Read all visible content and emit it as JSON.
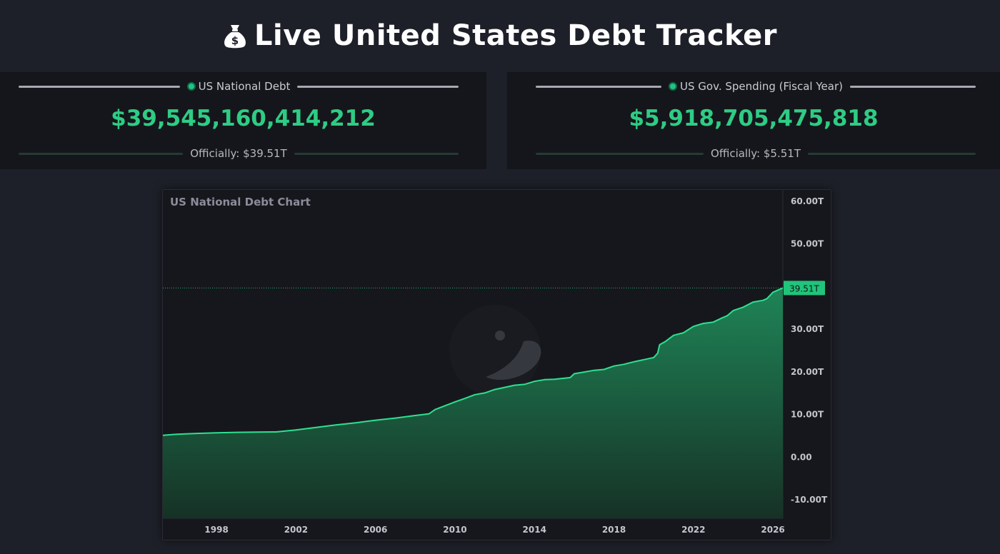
{
  "header": {
    "title": "Live United States Debt Tracker",
    "icon": "money-bag-icon"
  },
  "cards": [
    {
      "label": "US National Debt",
      "value": "$39,545,160,414,212",
      "official": "Officially: $39.51T"
    },
    {
      "label": "US Gov. Spending (Fiscal Year)",
      "value": "$5,918,705,475,818",
      "official": "Officially: $5.51T"
    }
  ],
  "colors": {
    "accent": "#2ecc84",
    "background": "#1e2029",
    "card": "#15161b"
  },
  "chart_data": {
    "type": "area",
    "title": "US National Debt Chart",
    "xlabel": "",
    "ylabel": "",
    "x_ticks": [
      "1998",
      "2002",
      "2006",
      "2010",
      "2014",
      "2018",
      "2022",
      "2026"
    ],
    "y_ticks": [
      "60.00T",
      "50.00T",
      "40.00T",
      "30.00T",
      "20.00T",
      "10.00T",
      "0.00",
      "-10.00T"
    ],
    "y_tick_values": [
      60,
      50,
      40,
      30,
      20,
      10,
      0,
      -10
    ],
    "ylim": [
      -14.5,
      62.5
    ],
    "xlim": [
      1995.3,
      2026.5
    ],
    "current_label": "39.51T",
    "current_value": 39.51,
    "series": [
      {
        "x": [
          1995.3,
          1996,
          1997,
          1998,
          1999,
          2000,
          2001,
          2002,
          2003,
          2004,
          2005,
          2006,
          2007,
          2008,
          2008.7,
          2009,
          2009.5,
          2010,
          2010.5,
          2011,
          2011.5,
          2012,
          2012.5,
          2013,
          2013.5,
          2014,
          2014.5,
          2015,
          2015.8,
          2016,
          2016.5,
          2017,
          2017.5,
          2018,
          2018.5,
          2019,
          2019.5,
          2020,
          2020.2,
          2020.3,
          2020.6,
          2021,
          2021.5,
          2022,
          2022.5,
          2023,
          2023.4,
          2023.7,
          2024,
          2024.5,
          2025,
          2025.5,
          2025.7,
          2026,
          2026.5
        ],
        "y": [
          4.95,
          5.2,
          5.4,
          5.55,
          5.65,
          5.7,
          5.75,
          6.2,
          6.8,
          7.4,
          7.9,
          8.5,
          9.0,
          9.6,
          10.0,
          11.0,
          11.9,
          12.8,
          13.6,
          14.5,
          14.9,
          15.7,
          16.2,
          16.7,
          16.9,
          17.6,
          18.0,
          18.1,
          18.5,
          19.4,
          19.8,
          20.2,
          20.4,
          21.2,
          21.6,
          22.2,
          22.7,
          23.2,
          24.2,
          26.2,
          27.0,
          28.4,
          29.0,
          30.5,
          31.2,
          31.5,
          32.4,
          33.0,
          34.2,
          35.0,
          36.2,
          36.6,
          37.0,
          38.5,
          39.51
        ]
      }
    ],
    "grid": false,
    "legend": "none"
  }
}
